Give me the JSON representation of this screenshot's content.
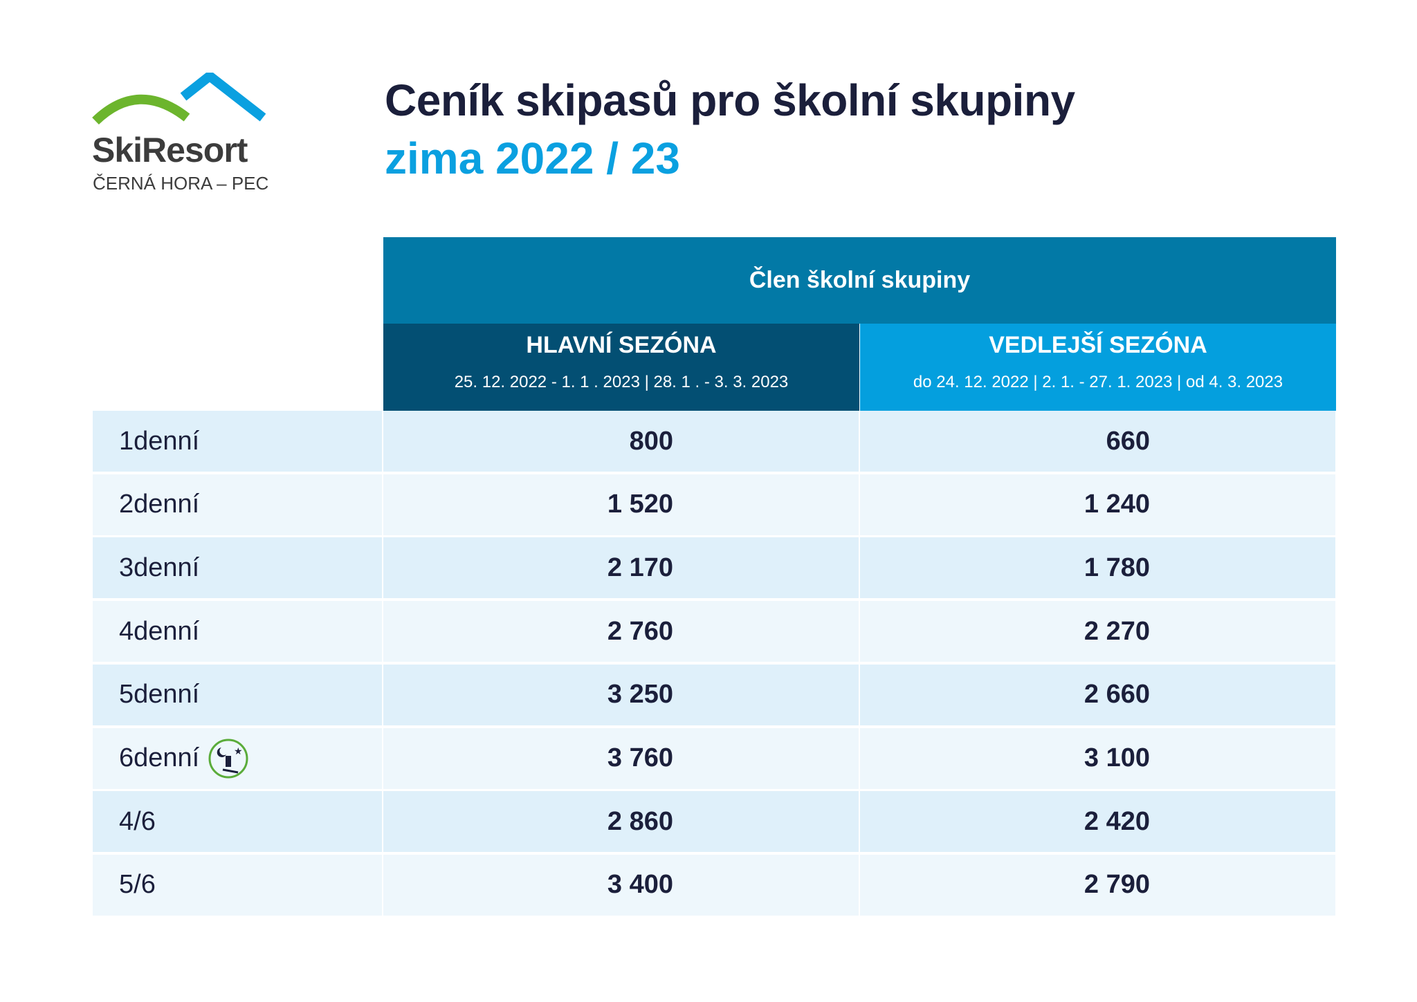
{
  "logo": {
    "name": "SkiResort",
    "sub": "ČERNÁ HORA – PEC",
    "colors": {
      "arc": "#6cb52d",
      "roof": "#0aa0e0"
    }
  },
  "header": {
    "title": "Ceník skipasů pro školní skupiny",
    "subtitle": "zima 2022 / 23"
  },
  "table": {
    "group_header": "Člen školní skupiny",
    "columns": [
      {
        "title": "HLAVNÍ SEZÓNA",
        "dates": "25. 12. 2022  - 1. 1 . 2023 |  28. 1 .  - 3. 3. 2023"
      },
      {
        "title": "VEDLEJŠÍ SEZÓNA",
        "dates": "do 24. 12. 2022 | 2. 1. - 27. 1. 2023 | od 4. 3. 2023"
      }
    ],
    "rows": [
      {
        "label": "1denní",
        "values": [
          "800",
          "660"
        ]
      },
      {
        "label": "2denní",
        "values": [
          "1 520",
          "1 240"
        ]
      },
      {
        "label": "3denní",
        "values": [
          "2 170",
          "1 780"
        ]
      },
      {
        "label": "4denní",
        "values": [
          "2 760",
          "2 270"
        ]
      },
      {
        "label": "5denní",
        "values": [
          "3 250",
          "2 660"
        ]
      },
      {
        "label": "6denní",
        "values": [
          "3 760",
          "3 100"
        ],
        "icon": "night-skiing-icon"
      },
      {
        "label": "4/6",
        "values": [
          "2 860",
          "2 420"
        ]
      },
      {
        "label": "5/6",
        "values": [
          "3 400",
          "2 790"
        ]
      }
    ]
  }
}
